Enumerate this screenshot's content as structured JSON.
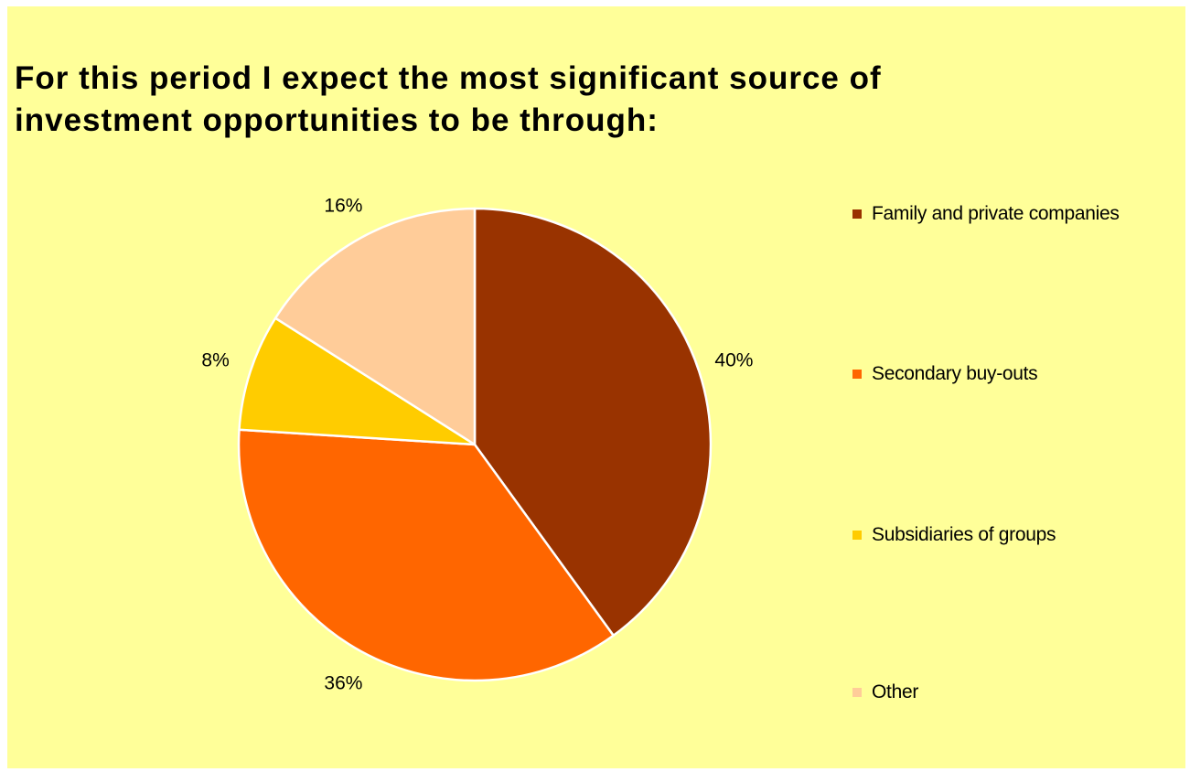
{
  "chart_data": {
    "type": "pie",
    "title": "For this period I expect the most significant source of investment opportunities to be through:",
    "title_lines": [
      "For this period I expect the most significant source of",
      "investment opportunities to be through:"
    ],
    "categories": [
      "Family and private companies",
      "Secondary buy-outs",
      "Subsidiaries of groups",
      "Other"
    ],
    "values": [
      40,
      36,
      8,
      16
    ],
    "data_labels": [
      "40%",
      "36%",
      "8%",
      "16%"
    ],
    "colors": [
      "#993300",
      "#ff6600",
      "#ffcc00",
      "#ffcc99"
    ],
    "legend_position": "right",
    "background": "#ffff99"
  }
}
